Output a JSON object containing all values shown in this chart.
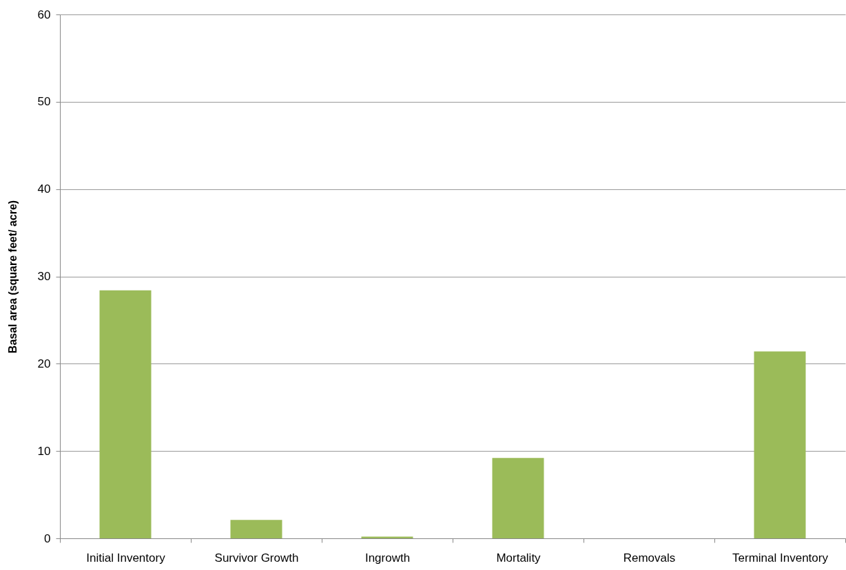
{
  "chart_data": {
    "type": "bar",
    "ylabel": "Basal area (square feet/ acre)",
    "categories": [
      "Initial Inventory",
      "Survivor Growth",
      "Ingrowth",
      "Mortality",
      "Removals",
      "Terminal Inventory"
    ],
    "values": [
      28.4,
      2.1,
      0.2,
      9.2,
      0,
      21.4
    ],
    "color": "#9bbb59",
    "ylim": [
      0,
      60
    ],
    "yticks": [
      0,
      10,
      20,
      30,
      40,
      50,
      60
    ],
    "grid": "y"
  }
}
